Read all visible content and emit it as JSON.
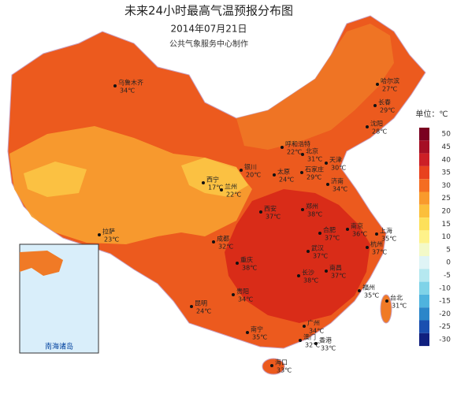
{
  "header": {
    "title": "未来24小时最高气温预报分布图",
    "date": "2014年07月21日",
    "credit": "公共气象服务中心制作"
  },
  "legend": {
    "unit": "单位：℃",
    "items": [
      {
        "value": 50,
        "color": "#7a0020"
      },
      {
        "value": 45,
        "color": "#a50f24"
      },
      {
        "value": 40,
        "color": "#cc1f26"
      },
      {
        "value": 35,
        "color": "#e8421e"
      },
      {
        "value": 30,
        "color": "#f46d22"
      },
      {
        "value": 25,
        "color": "#f99a2c"
      },
      {
        "value": 20,
        "color": "#fbbf3b"
      },
      {
        "value": 15,
        "color": "#fde05a"
      },
      {
        "value": 10,
        "color": "#fef28a"
      },
      {
        "value": 5,
        "color": "#f3f9c8"
      },
      {
        "value": 0,
        "color": "#dff4f6"
      },
      {
        "value": -5,
        "color": "#b5e8f0"
      },
      {
        "value": -10,
        "color": "#7fd3e8"
      },
      {
        "value": -15,
        "color": "#4fb3de"
      },
      {
        "value": -20,
        "color": "#2b86c9"
      },
      {
        "value": -25,
        "color": "#1a4fb0"
      },
      {
        "value": -30,
        "color": "#10207f"
      }
    ]
  },
  "inset": {
    "label": "南海诸岛"
  },
  "cities": [
    {
      "name": "乌鲁木齐",
      "temp": "34℃"
    },
    {
      "name": "哈尔滨",
      "temp": "27℃"
    },
    {
      "name": "长春",
      "temp": "29℃"
    },
    {
      "name": "沈阳",
      "temp": "28℃"
    },
    {
      "name": "呼和浩特",
      "temp": "22℃"
    },
    {
      "name": "北京",
      "temp": "31℃"
    },
    {
      "name": "天津",
      "temp": "30℃"
    },
    {
      "name": "石家庄",
      "temp": "29℃"
    },
    {
      "name": "太原",
      "temp": "24℃"
    },
    {
      "name": "银川",
      "temp": "20℃"
    },
    {
      "name": "济南",
      "temp": "34℃"
    },
    {
      "name": "西宁",
      "temp": "17℃"
    },
    {
      "name": "兰州",
      "temp": "22℃"
    },
    {
      "name": "郑州",
      "temp": "38℃"
    },
    {
      "name": "西安",
      "temp": "37℃"
    },
    {
      "name": "拉萨",
      "temp": "23℃"
    },
    {
      "name": "合肥",
      "temp": "37℃"
    },
    {
      "name": "南京",
      "temp": "36℃"
    },
    {
      "name": "上海",
      "temp": "35℃"
    },
    {
      "name": "杭州",
      "temp": "37℃"
    },
    {
      "name": "成都",
      "temp": "32℃"
    },
    {
      "name": "武汉",
      "temp": "37℃"
    },
    {
      "name": "重庆",
      "temp": "38℃"
    },
    {
      "name": "长沙",
      "temp": "38℃"
    },
    {
      "name": "南昌",
      "temp": "37℃"
    },
    {
      "name": "贵阳",
      "temp": "34℃"
    },
    {
      "name": "福州",
      "temp": "35℃"
    },
    {
      "name": "台北",
      "temp": "31℃"
    },
    {
      "name": "昆明",
      "temp": "24℃"
    },
    {
      "name": "南宁",
      "temp": "35℃"
    },
    {
      "name": "广州",
      "temp": "34℃"
    },
    {
      "name": "澳门",
      "temp": "32℃"
    },
    {
      "name": "香港",
      "temp": "33℃"
    },
    {
      "name": "海口",
      "temp": "33℃"
    }
  ]
}
